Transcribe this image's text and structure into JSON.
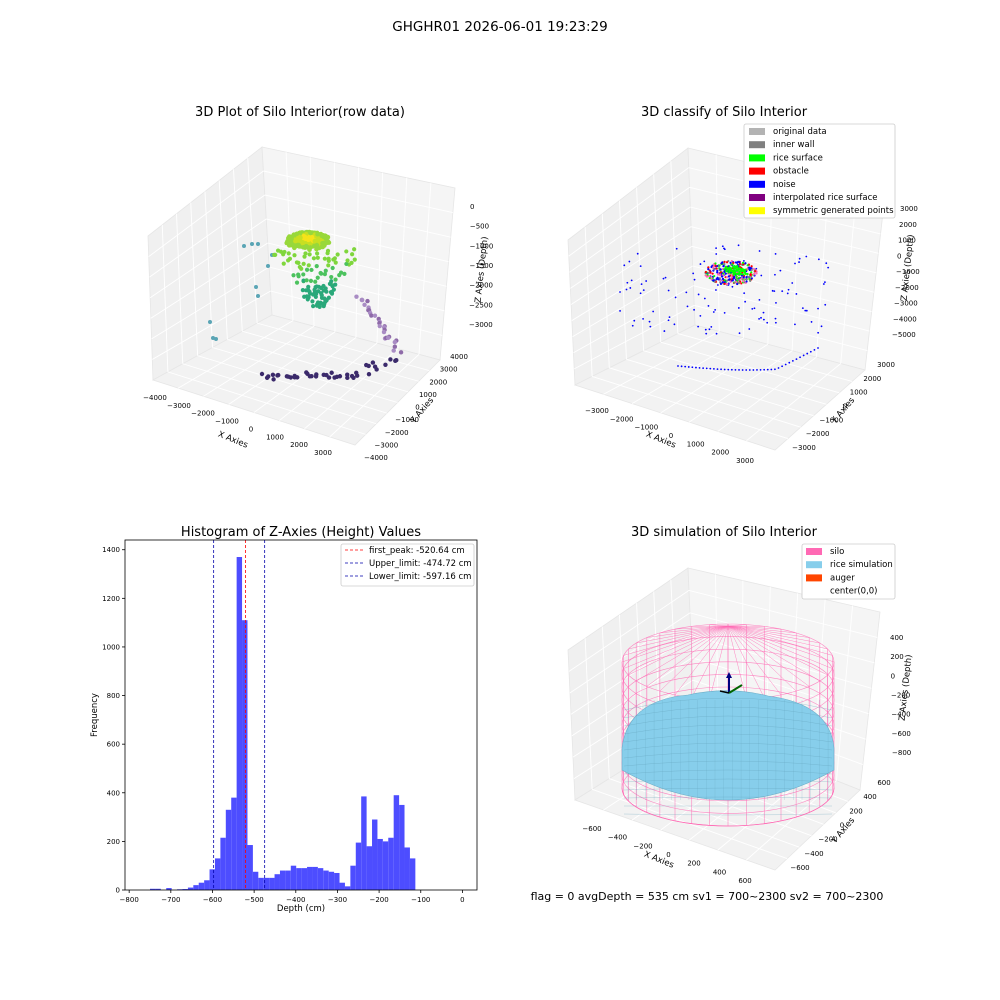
{
  "suptitle": "GHGHR01 2026-06-01 19:23:29",
  "footer": "flag = 0     avgDepth = 535 cm  sv1 = 700~2300  sv2 = 700~2300",
  "colors": {
    "hist_bar": "#4d4dff",
    "peak_line": "#ff0000",
    "limit_line": "#0000aa",
    "silo": "#ff69b4",
    "rice": "#87ceeb",
    "auger": "#ff4500"
  },
  "chart_data": [
    {
      "id": "raw",
      "type": "scatter",
      "title": "3D Plot of Silo Interior(row data)",
      "xlabel": "X Axies",
      "ylabel": "Y Axies",
      "zlabel": "Z Axies (Depth)",
      "xticks": [
        "−4000",
        "−3000",
        "−2000",
        "−1000",
        "0",
        "1000",
        "2000",
        "3000"
      ],
      "yticks": [
        "−4000",
        "−3000",
        "−2000",
        "−1000",
        "0",
        "1000",
        "2000",
        "3000",
        "4000"
      ],
      "zticks": [
        "−3000",
        "−2500",
        "−2000",
        "−1500",
        "−1000",
        "−500",
        "0"
      ]
    },
    {
      "id": "classify",
      "type": "scatter",
      "title": "3D classify of Silo Interior",
      "xlabel": "X Axies",
      "ylabel": "Y Axies",
      "zlabel": "Z Axies (Depth)",
      "xticks": [
        "−3000",
        "−2000",
        "−1000",
        "0",
        "1000",
        "2000",
        "3000"
      ],
      "yticks": [
        "−3000",
        "−2000",
        "−1000",
        "0",
        "1000",
        "2000",
        "3000"
      ],
      "zticks": [
        "−5000",
        "−4000",
        "−3000",
        "−2000",
        "−1000",
        "0",
        "1000",
        "2000",
        "3000"
      ],
      "legend": [
        {
          "label": "original data",
          "color": "#b3b3b3"
        },
        {
          "label": "inner wall",
          "color": "#808080"
        },
        {
          "label": "rice surface",
          "color": "#00ff00"
        },
        {
          "label": "obstacle",
          "color": "#ff0000"
        },
        {
          "label": "noise",
          "color": "#0000ff"
        },
        {
          "label": "interpolated rice surface",
          "color": "#800080"
        },
        {
          "label": "symmetric generated points",
          "color": "#ffff00"
        }
      ]
    },
    {
      "id": "hist",
      "type": "bar",
      "title": "Histogram of Z-Axies (Height) Values",
      "xlabel": "Depth (cm)",
      "ylabel": "Frequency",
      "xlim": [
        -810,
        35
      ],
      "ylim": [
        0,
        1440
      ],
      "xticks": [
        -800,
        -700,
        -600,
        -500,
        -400,
        -300,
        -200,
        -100,
        0
      ],
      "yticks": [
        0,
        200,
        400,
        600,
        800,
        1000,
        1200,
        1400
      ],
      "bin_edges": [
        -750,
        -737,
        -724,
        -711,
        -698,
        -685,
        -672,
        -659,
        -646,
        -633,
        -620,
        -607,
        -594,
        -581,
        -568,
        -555,
        -542,
        -529,
        -516,
        -503,
        -490,
        -477,
        -464,
        -451,
        -438,
        -425,
        -412,
        -399,
        -386,
        -373,
        -360,
        -347,
        -334,
        -321,
        -308,
        -295,
        -282,
        -269,
        -256,
        -243,
        -230,
        -217,
        -204,
        -191,
        -178,
        -165,
        -152,
        -139,
        -126,
        -113,
        -100,
        -87,
        -74,
        -61,
        -48,
        -35,
        -22,
        -9,
        4
      ],
      "counts": [
        5,
        5,
        0,
        8,
        0,
        3,
        4,
        10,
        20,
        30,
        40,
        85,
        130,
        215,
        330,
        380,
        1370,
        1110,
        185,
        75,
        50,
        50,
        50,
        65,
        80,
        80,
        100,
        90,
        90,
        95,
        95,
        90,
        80,
        75,
        70,
        30,
        15,
        100,
        195,
        385,
        180,
        290,
        210,
        200,
        215,
        390,
        350,
        175,
        130,
        0,
        0,
        0,
        0,
        0,
        0,
        0,
        0,
        0
      ],
      "vlines": [
        {
          "x": -520.64,
          "label": "first_peak: -520.64 cm",
          "color": "#ff0000"
        },
        {
          "x": -474.72,
          "label": "Upper_limit: -474.72 cm",
          "color": "#0000aa"
        },
        {
          "x": -597.16,
          "label": "Lower_limit: -597.16 cm",
          "color": "#0000aa"
        }
      ]
    },
    {
      "id": "sim",
      "type": "scatter",
      "title": "3D simulation of Silo Interior",
      "xlabel": "X Axies",
      "ylabel": "Y Axies",
      "zlabel": "Z Axies (Depth)",
      "xticks": [
        "−600",
        "−400",
        "−200",
        "0",
        "200",
        "400",
        "600"
      ],
      "yticks": [
        "−600",
        "−400",
        "−200",
        "0",
        "200",
        "400",
        "600"
      ],
      "zticks": [
        "−800",
        "−600",
        "−400",
        "−200",
        "0",
        "200",
        "400"
      ],
      "legend": [
        {
          "label": "silo",
          "color": "#ff69b4"
        },
        {
          "label": "rice simulation",
          "color": "#87ceeb"
        },
        {
          "label": "auger",
          "color": "#ff4500"
        },
        {
          "label": "center(0,0)",
          "color": ""
        }
      ]
    }
  ]
}
